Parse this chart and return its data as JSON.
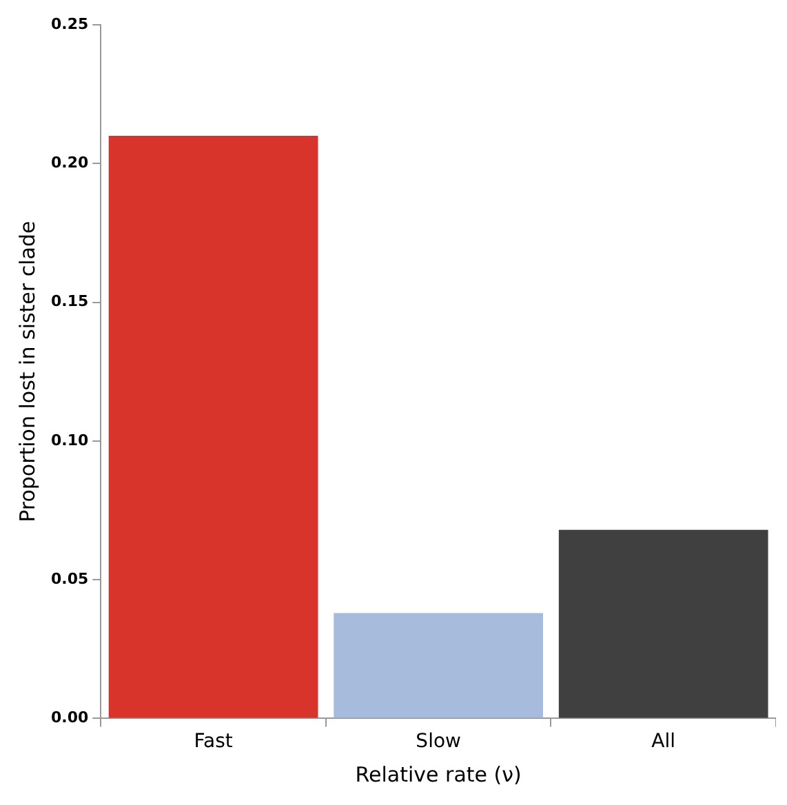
{
  "chart_data": {
    "type": "bar",
    "xlabel": "Relative rate (ν)",
    "ylabel": "Proportion lost in sister clade",
    "categories": [
      "Fast",
      "Slow",
      "All"
    ],
    "values": [
      0.21,
      0.038,
      0.068
    ],
    "colors": [
      "#d9342b",
      "#a7bbdc",
      "#404040"
    ],
    "ylim": [
      0,
      0.25
    ],
    "yticks": [
      {
        "value": 0,
        "label": "0.00"
      },
      {
        "value": 0.05,
        "label": "0.05"
      },
      {
        "value": 0.1,
        "label": "0.10"
      },
      {
        "value": 0.15,
        "label": "0.15"
      },
      {
        "value": 0.2,
        "label": "0.20"
      },
      0.25
    ],
    "grid": false,
    "legend": false
  }
}
